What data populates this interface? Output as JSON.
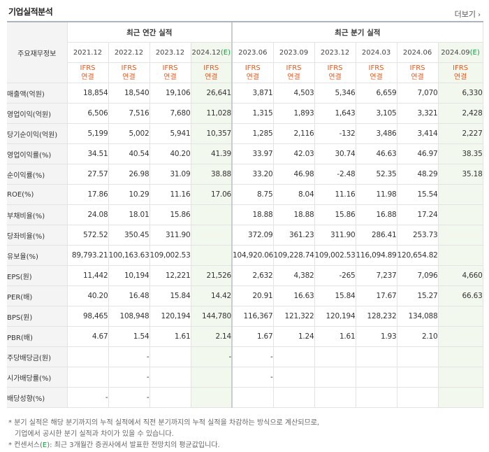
{
  "title": "기업실적분석",
  "more_label": "더보기",
  "corner_label": "주요재무정보",
  "annual_header": "최근 연간 실적",
  "quarter_header": "최근 분기 실적",
  "periods_annual": [
    {
      "label": "2021.12",
      "est": ""
    },
    {
      "label": "2022.12",
      "est": ""
    },
    {
      "label": "2023.12",
      "est": ""
    },
    {
      "label": "2024.12",
      "est": "(E)"
    }
  ],
  "periods_quarter": [
    {
      "label": "2023.06",
      "est": ""
    },
    {
      "label": "2023.09",
      "est": ""
    },
    {
      "label": "2023.12",
      "est": ""
    },
    {
      "label": "2024.03",
      "est": ""
    },
    {
      "label": "2024.06",
      "est": ""
    },
    {
      "label": "2024.09",
      "est": "(E)"
    }
  ],
  "ifrs_label": "IFRS",
  "consol_label": "연결",
  "rows": [
    {
      "label": "매출액(억원)",
      "group": 1,
      "values": [
        "18,854",
        "18,540",
        "19,106",
        "26,641",
        "3,871",
        "4,503",
        "5,346",
        "6,659",
        "7,070",
        "6,330"
      ]
    },
    {
      "label": "영업이익(억원)",
      "group": 1,
      "values": [
        "6,506",
        "7,516",
        "7,680",
        "11,028",
        "1,315",
        "1,893",
        "1,643",
        "3,105",
        "3,321",
        "2,428"
      ]
    },
    {
      "label": "당기순이익(억원)",
      "group": 1,
      "values": [
        "5,199",
        "5,002",
        "5,941",
        "10,357",
        "1,285",
        "2,116",
        "-132",
        "3,486",
        "3,414",
        "2,227"
      ]
    },
    {
      "label": "영업이익률(%)",
      "group": 2,
      "values": [
        "34.51",
        "40.54",
        "40.20",
        "41.39",
        "33.97",
        "42.03",
        "30.74",
        "46.63",
        "46.97",
        "38.35"
      ]
    },
    {
      "label": "순이익률(%)",
      "group": 2,
      "values": [
        "27.57",
        "26.98",
        "31.09",
        "38.88",
        "33.20",
        "46.98",
        "-2.48",
        "52.35",
        "48.29",
        "35.18"
      ]
    },
    {
      "label": "ROE(%)",
      "group": 2,
      "values": [
        "17.86",
        "10.29",
        "11.16",
        "17.06",
        "8.75",
        "8.04",
        "11.16",
        "11.98",
        "15.54",
        ""
      ]
    },
    {
      "label": "부채비율(%)",
      "group": 3,
      "values": [
        "24.08",
        "18.01",
        "15.86",
        "",
        "18.88",
        "18.88",
        "15.86",
        "16.88",
        "17.24",
        ""
      ]
    },
    {
      "label": "당좌비율(%)",
      "group": 3,
      "values": [
        "572.52",
        "350.45",
        "311.90",
        "",
        "372.09",
        "361.23",
        "311.90",
        "286.41",
        "253.73",
        ""
      ]
    },
    {
      "label": "유보율(%)",
      "group": 3,
      "values": [
        "89,793.21",
        "100,163.63",
        "109,002.53",
        "",
        "104,920.06",
        "109,228.74",
        "109,002.53",
        "116,094.89",
        "120,654.82",
        ""
      ]
    },
    {
      "label": "EPS(원)",
      "group": 4,
      "values": [
        "11,442",
        "10,194",
        "12,221",
        "21,526",
        "2,632",
        "4,382",
        "-265",
        "7,237",
        "7,096",
        "4,660"
      ]
    },
    {
      "label": "PER(배)",
      "group": 4,
      "values": [
        "40.20",
        "16.48",
        "15.84",
        "14.42",
        "20.91",
        "16.63",
        "15.84",
        "17.67",
        "15.27",
        "66.63"
      ]
    },
    {
      "label": "BPS(원)",
      "group": 4,
      "values": [
        "98,465",
        "108,948",
        "120,194",
        "144,780",
        "116,367",
        "121,322",
        "120,194",
        "128,232",
        "134,088",
        ""
      ]
    },
    {
      "label": "PBR(배)",
      "group": 4,
      "values": [
        "4.67",
        "1.54",
        "1.61",
        "2.14",
        "1.67",
        "1.24",
        "1.61",
        "1.93",
        "2.10",
        ""
      ]
    },
    {
      "label": "주당배당금(원)",
      "group": 5,
      "values": [
        "",
        "-",
        "",
        "-",
        "-",
        "",
        "",
        "",
        "",
        ""
      ]
    },
    {
      "label": "시가배당률(%)",
      "group": 5,
      "values": [
        "",
        "-",
        "",
        "",
        "-",
        "",
        "",
        "",
        "",
        ""
      ]
    },
    {
      "label": "배당성향(%)",
      "group": 5,
      "values": [
        "-",
        "-",
        "",
        "",
        "",
        "",
        "",
        "",
        "",
        ""
      ]
    }
  ],
  "notes": [
    "* 분기 실적은 해당 분기까지의 누적 실적에서 직전 분기까지의 누적 실적을 차감하는 방식으로 계산되므로,",
    "기업에서 공시한 분기 실적과 차이가 있을 수 있습니다.",
    "* 컨센서스(E): 최근 3개월간 증권사에서 발표한 전망치의 평균값입니다."
  ],
  "colors": {
    "ifrs": "#e9581c",
    "negative": "#e2201c",
    "estimate_bg": "#f3f8ef",
    "estimate_tag": "#09a33c"
  }
}
